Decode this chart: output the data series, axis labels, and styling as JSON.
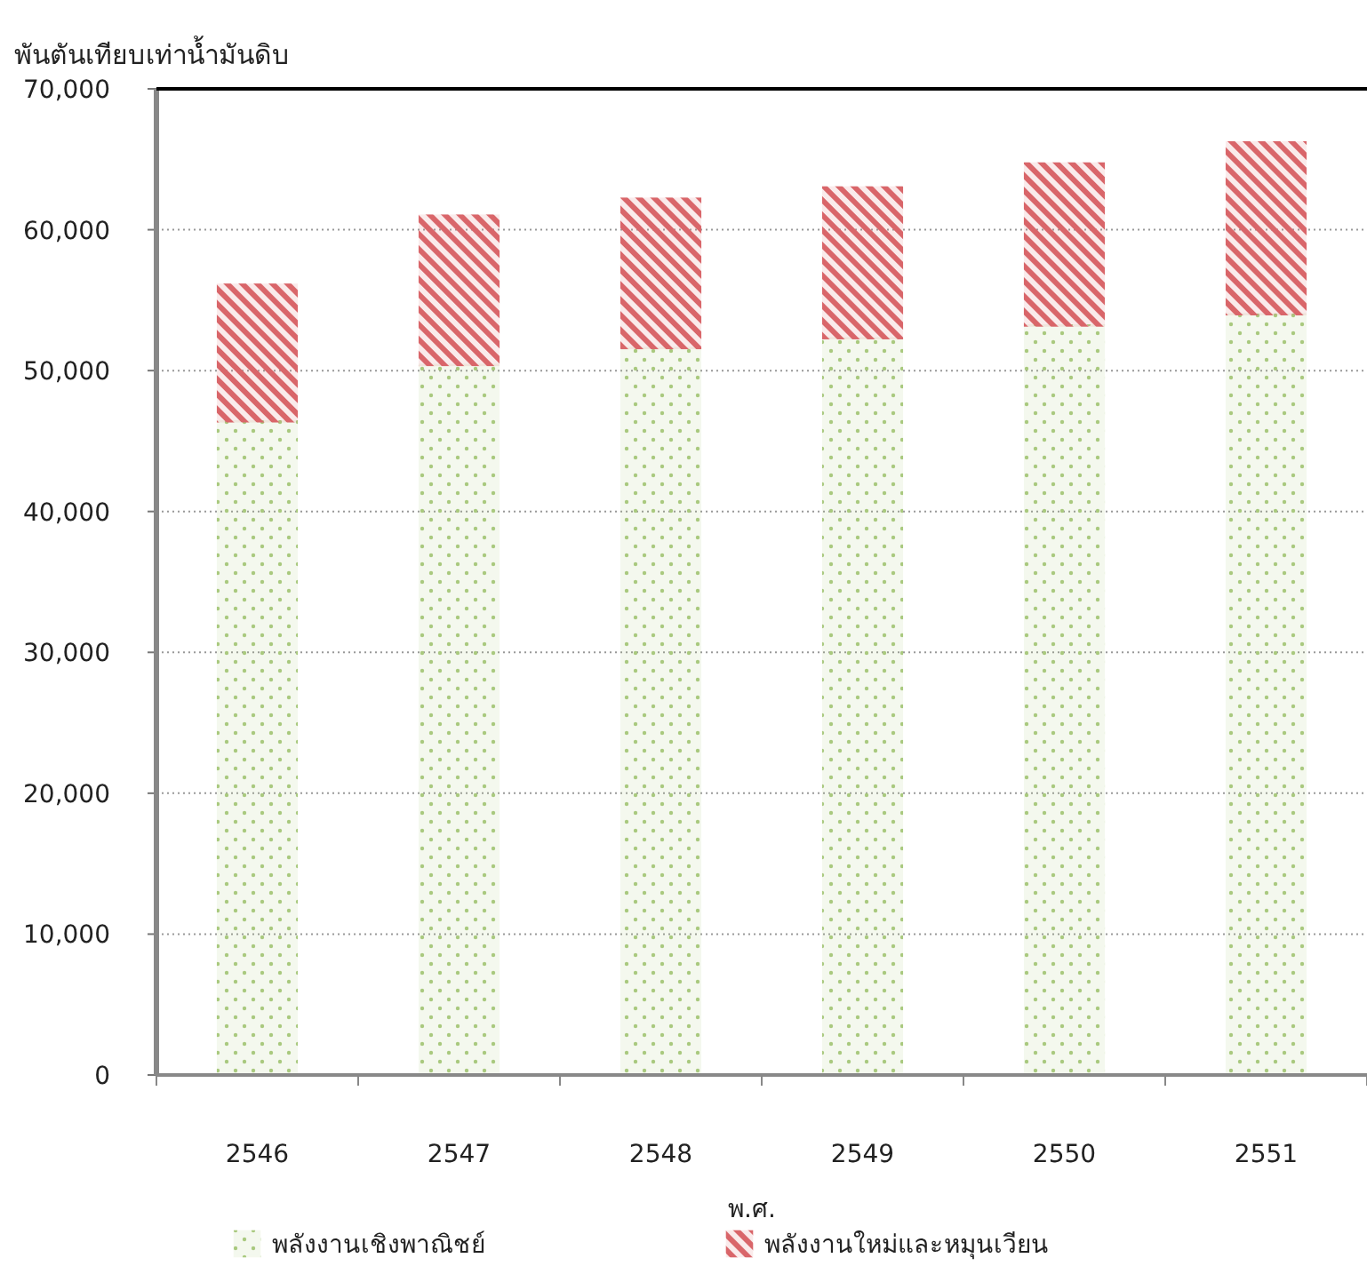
{
  "chart_data": {
    "type": "bar",
    "stacked": true,
    "ylabel": "พันตันเทียบเท่าน้ำมันดิบ",
    "xlabel": "พ.ศ.",
    "categories": [
      "2546",
      "2547",
      "2548",
      "2549",
      "2550",
      "2551"
    ],
    "series": [
      {
        "name": "พลังงานเชิงพาณิชย์",
        "color": "#a9c97e",
        "values": [
          46400,
          50400,
          51600,
          52300,
          53200,
          54000
        ]
      },
      {
        "name": "พลังงานใหม่และหมุนเวียน",
        "color": "#d9666a",
        "values": [
          9700,
          10600,
          10600,
          10700,
          11500,
          12200
        ]
      }
    ],
    "ylim": [
      0,
      70000
    ],
    "yticks": [
      {
        "value": 0,
        "label": "0"
      },
      {
        "value": 10000,
        "label": "10,000"
      },
      {
        "value": 20000,
        "label": "20,000"
      },
      {
        "value": 30000,
        "label": "30,000"
      },
      {
        "value": 40000,
        "label": "40,000"
      },
      {
        "value": 50000,
        "label": "50,000"
      },
      {
        "value": 60000,
        "label": "60,000"
      },
      {
        "value": 70000,
        "label": "70,000"
      }
    ],
    "grid": "y",
    "legend": "bottom"
  }
}
